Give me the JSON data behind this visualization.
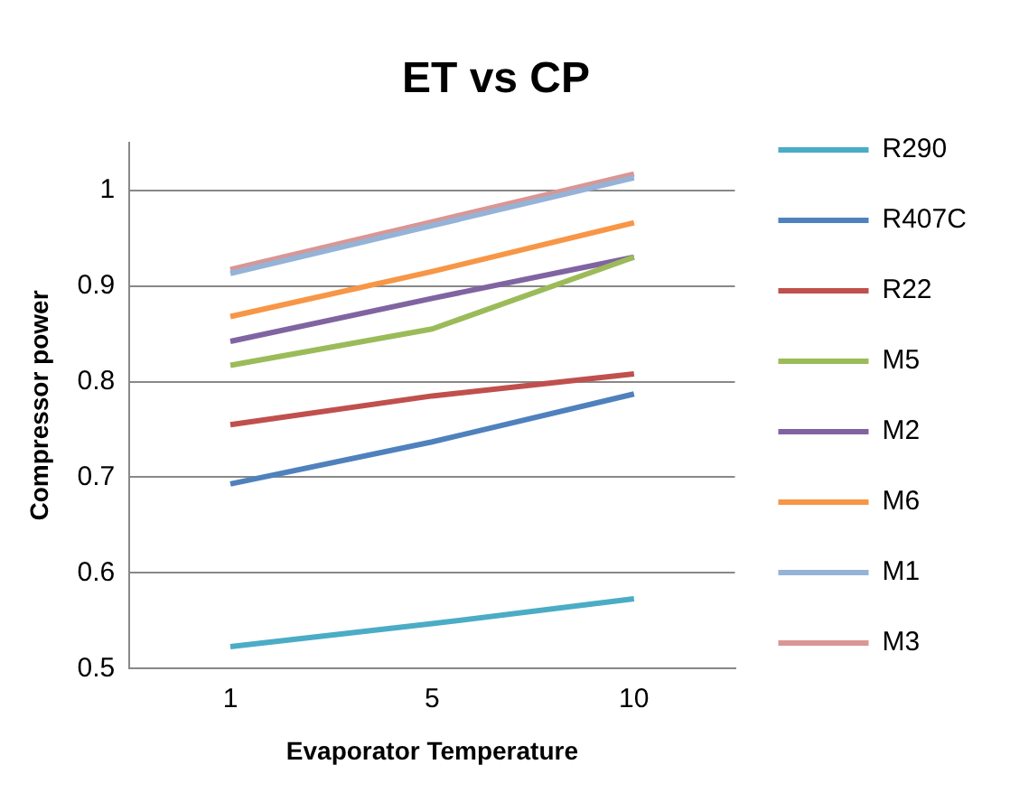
{
  "chart_data": {
    "type": "line",
    "title": "ET vs CP",
    "xlabel": "Evaporator Temperature",
    "ylabel": "Compressor power",
    "categories": [
      "1",
      "5",
      "10"
    ],
    "ylim": [
      0.5,
      1.05
    ],
    "yticks": [
      0.5,
      0.6,
      0.7,
      0.8,
      0.9,
      1
    ],
    "grid": "y",
    "legend": "right",
    "marker": "none",
    "line_style": "solid",
    "series": [
      {
        "name": "R290",
        "color": "#4bacc6",
        "values": [
          0.523,
          0.547,
          0.573
        ]
      },
      {
        "name": "R407C",
        "color": "#4f81bd",
        "values": [
          0.693,
          0.737,
          0.787
        ]
      },
      {
        "name": "R22",
        "color": "#c0504d",
        "values": [
          0.755,
          0.785,
          0.808
        ]
      },
      {
        "name": "M5",
        "color": "#9bbb59",
        "values": [
          0.817,
          0.855,
          0.93
        ]
      },
      {
        "name": "M2",
        "color": "#8064a2",
        "values": [
          0.842,
          0.887,
          0.93
        ]
      },
      {
        "name": "M6",
        "color": "#f79646",
        "values": [
          0.868,
          0.915,
          0.966
        ]
      },
      {
        "name": "M1",
        "color": "#95b3d7",
        "values": [
          0.913,
          0.963,
          1.013
        ]
      },
      {
        "name": "M3",
        "color": "#d99694",
        "values": [
          0.917,
          0.967,
          1.017
        ]
      }
    ]
  }
}
